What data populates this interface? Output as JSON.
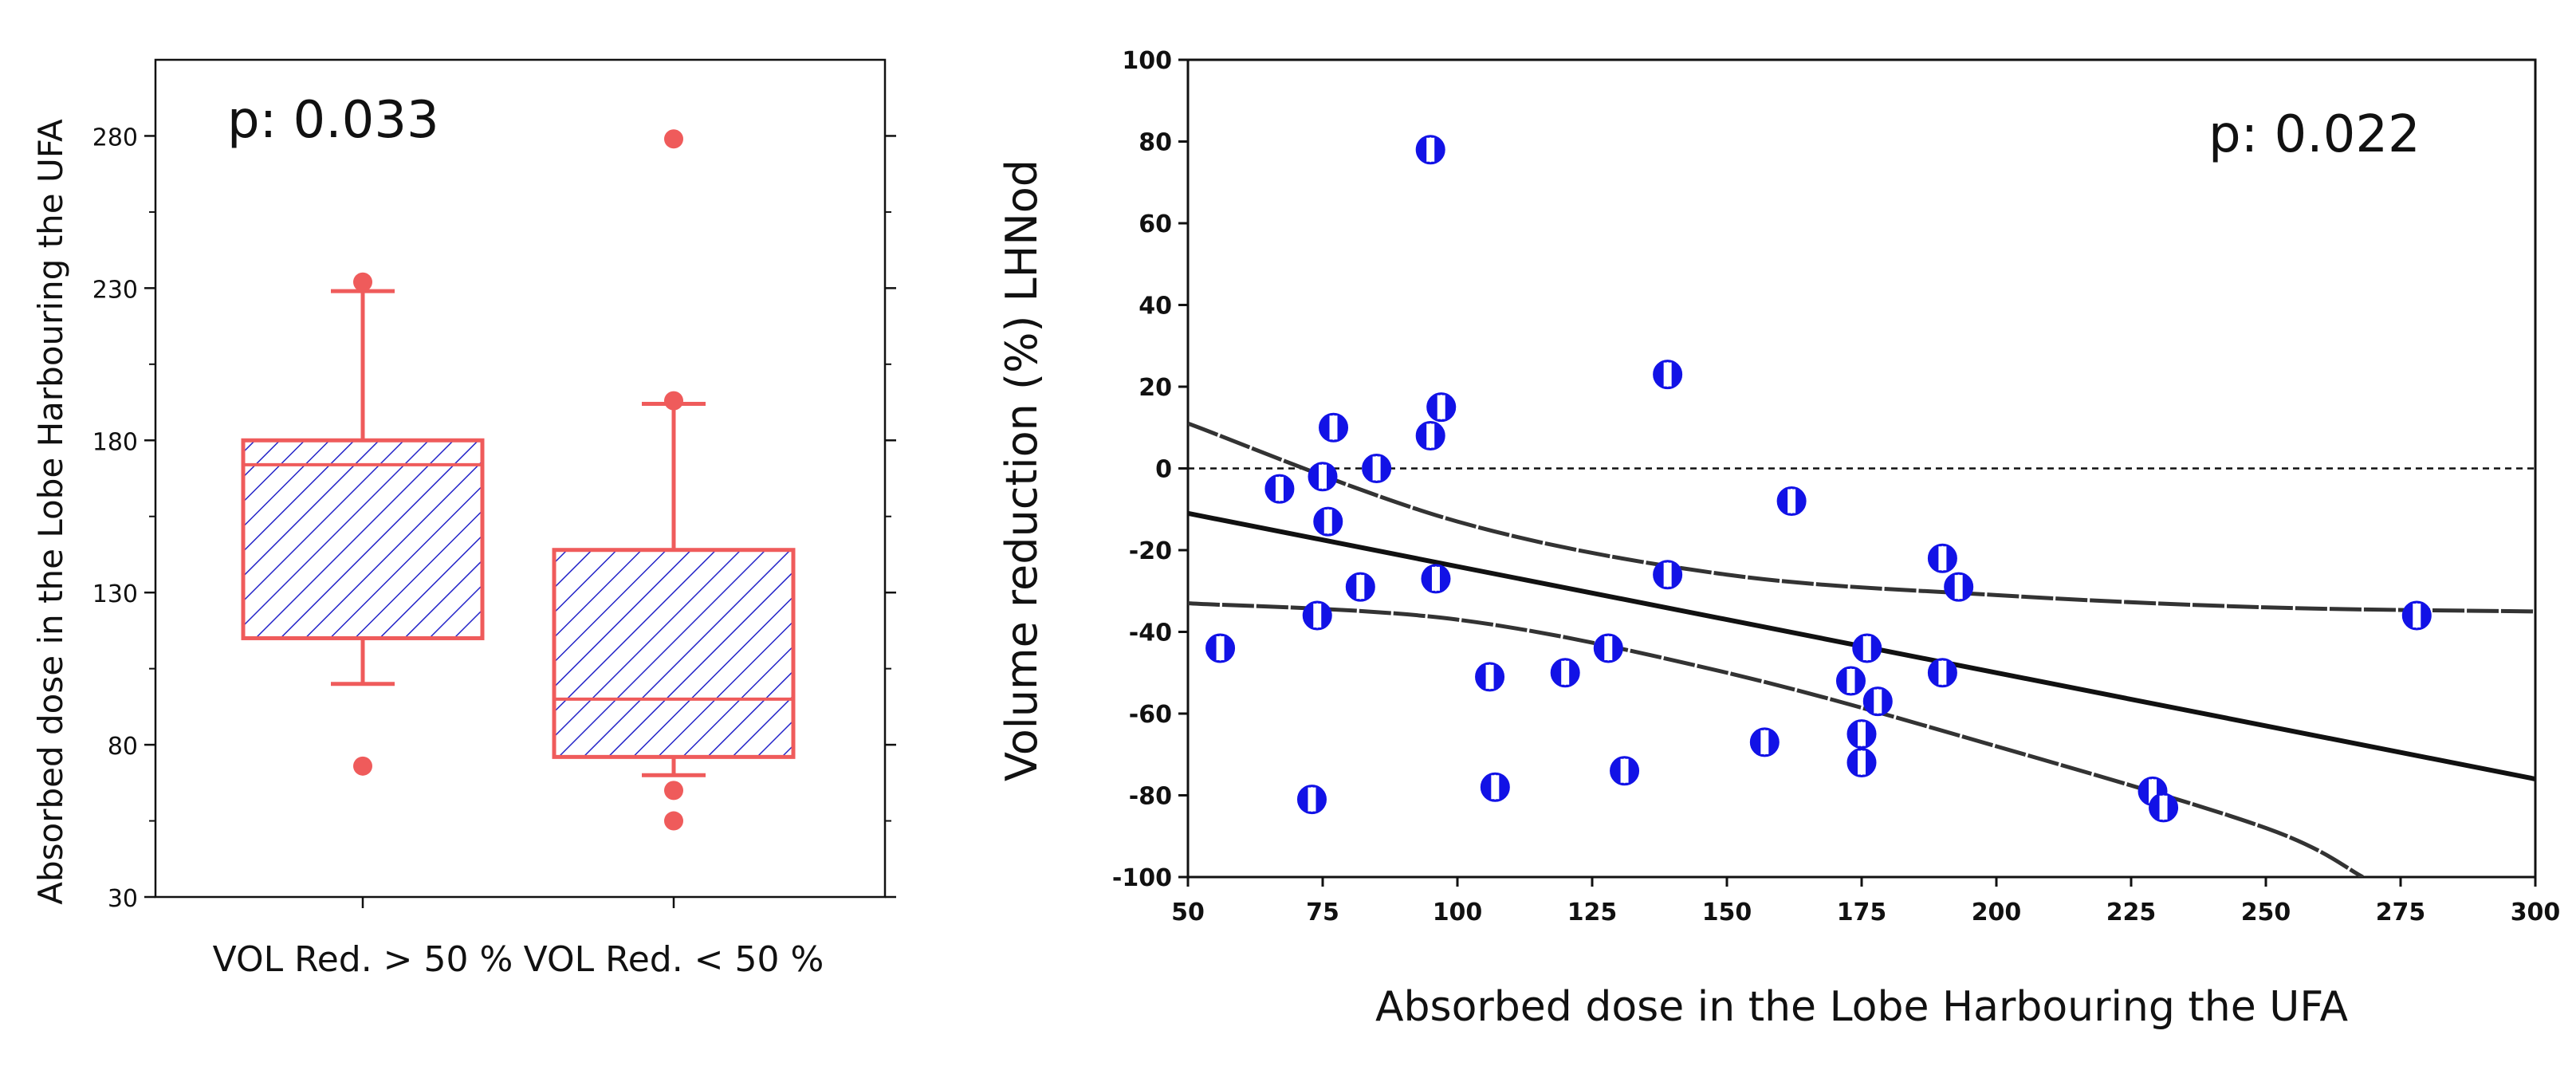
{
  "chart_data": [
    {
      "type": "box",
      "title": "",
      "annotation": "p: 0.033",
      "xlabel": "",
      "ylabel": "Absorbed dose in the Lobe Harbouring the UFA",
      "ylim": [
        30,
        305
      ],
      "yticks": [
        30,
        80,
        130,
        180,
        230,
        280
      ],
      "categories": [
        "VOL Red.  > 50 %",
        "VOL Red. < 50 %"
      ],
      "boxes": [
        {
          "name": "VOL Red.  > 50 %",
          "whisker_low": 100,
          "q1": 115,
          "median": 172,
          "q3": 180,
          "whisker_high": 229,
          "outliers": [
            73,
            232
          ]
        },
        {
          "name": "VOL Red. < 50 %",
          "whisker_low": 70,
          "q1": 76,
          "median": 95,
          "q3": 144,
          "whisker_high": 192,
          "outliers": [
            55,
            65,
            193,
            279
          ]
        }
      ],
      "colors": {
        "box": "#ef5b5b",
        "hatch": "#2424c8"
      }
    },
    {
      "type": "scatter",
      "title": "",
      "annotation": "p: 0.022",
      "xlabel": "Absorbed dose in the Lobe Harbouring the UFA",
      "ylabel": "Volume reduction (%) LHNod",
      "xlim": [
        50,
        300
      ],
      "ylim": [
        -100,
        100
      ],
      "xticks": [
        50,
        75,
        100,
        125,
        150,
        175,
        200,
        225,
        250,
        275,
        300
      ],
      "yticks": [
        -100,
        -80,
        -60,
        -40,
        -20,
        0,
        20,
        40,
        60,
        80,
        100
      ],
      "points": [
        {
          "x": 56,
          "y": -44
        },
        {
          "x": 67,
          "y": -5
        },
        {
          "x": 73,
          "y": -81
        },
        {
          "x": 74,
          "y": -36
        },
        {
          "x": 75,
          "y": -2
        },
        {
          "x": 76,
          "y": -13
        },
        {
          "x": 77,
          "y": 10
        },
        {
          "x": 82,
          "y": -29
        },
        {
          "x": 85,
          "y": 0
        },
        {
          "x": 95,
          "y": 78
        },
        {
          "x": 95,
          "y": 8
        },
        {
          "x": 96,
          "y": -27
        },
        {
          "x": 97,
          "y": 15
        },
        {
          "x": 106,
          "y": -51
        },
        {
          "x": 107,
          "y": -78
        },
        {
          "x": 120,
          "y": -50
        },
        {
          "x": 128,
          "y": -44
        },
        {
          "x": 131,
          "y": -74
        },
        {
          "x": 139,
          "y": 23
        },
        {
          "x": 139,
          "y": -26
        },
        {
          "x": 157,
          "y": -67
        },
        {
          "x": 162,
          "y": -8
        },
        {
          "x": 173,
          "y": -52
        },
        {
          "x": 175,
          "y": -65
        },
        {
          "x": 175,
          "y": -72
        },
        {
          "x": 176,
          "y": -44
        },
        {
          "x": 178,
          "y": -57
        },
        {
          "x": 190,
          "y": -22
        },
        {
          "x": 190,
          "y": -50
        },
        {
          "x": 193,
          "y": -29
        },
        {
          "x": 229,
          "y": -79
        },
        {
          "x": 231,
          "y": -83
        },
        {
          "x": 278,
          "y": -36
        }
      ],
      "regression_line": [
        [
          50,
          -11
        ],
        [
          300,
          -76
        ]
      ],
      "ci_upper": [
        [
          50,
          11
        ],
        [
          100,
          -13
        ],
        [
          150,
          -26
        ],
        [
          200,
          -31
        ],
        [
          250,
          -34
        ],
        [
          300,
          -35
        ]
      ],
      "ci_lower": [
        [
          50,
          -33
        ],
        [
          100,
          -37
        ],
        [
          150,
          -50
        ],
        [
          200,
          -68
        ],
        [
          250,
          -88
        ],
        [
          268,
          -100
        ]
      ],
      "reference_line_y": 0,
      "colors": {
        "point": "#1212e6",
        "line": "#111111"
      }
    }
  ]
}
